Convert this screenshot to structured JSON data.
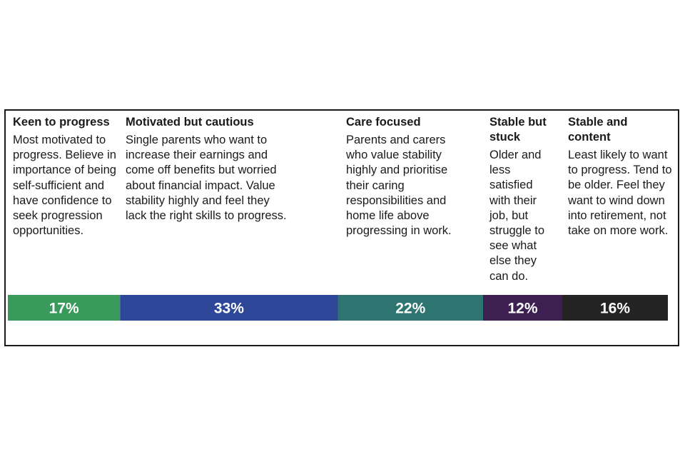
{
  "chart_data": {
    "type": "bar",
    "orientation": "horizontal-stacked",
    "categories": [
      "Keen to progress",
      "Motivated but cautious",
      "Care focused",
      "Stable but stuck",
      "Stable and content"
    ],
    "values": [
      17,
      33,
      22,
      12,
      16
    ],
    "value_labels": [
      "17%",
      "33%",
      "22%",
      "12%",
      "16%"
    ],
    "unit": "%",
    "segments": [
      {
        "title": "Keen to progress",
        "description": "Most motivated to progress. Believe in importance of being self-sufficient and have confidence to seek progression opportunities.",
        "value": 17,
        "label": "17%",
        "color": "#3a9a5c"
      },
      {
        "title": "Motivated but cautious",
        "description": "Single parents who want to increase their earnings and come off benefits but worried about financial impact. Value stability highly and feel they lack the right skills to progress.",
        "value": 33,
        "label": "33%",
        "color": "#2e4799"
      },
      {
        "title": "Care focused",
        "description": "Parents and carers who value stability highly and prioritise their caring responsibilities and home life above progressing in work.",
        "value": 22,
        "label": "22%",
        "color": "#2e7470"
      },
      {
        "title": "Stable but stuck",
        "description": "Older and less satisfied with their job, but struggle to see what else they can do.",
        "value": 12,
        "label": "12%",
        "color": "#3d1f52"
      },
      {
        "title": "Stable and content",
        "description": "Least likely to want to progress. Tend to be older. Feel they want to wind down into retirement, not take on more work.",
        "value": 16,
        "label": "16%",
        "color": "#242424"
      }
    ],
    "total": 100
  }
}
